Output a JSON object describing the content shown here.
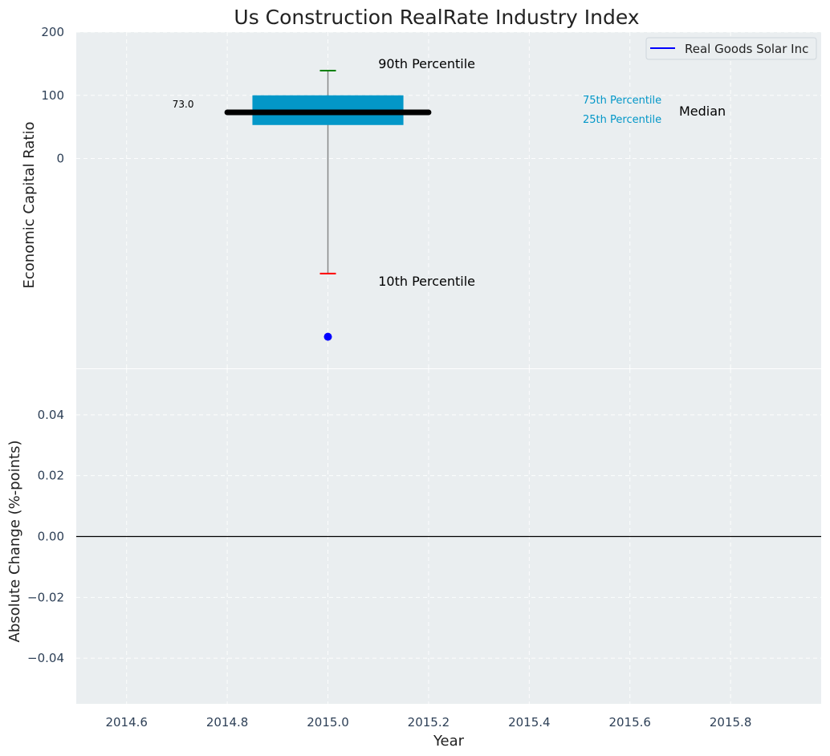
{
  "chart_data": {
    "type": "box",
    "title": "Us Construction RealRate Industry Index",
    "xlabel": "Year",
    "xlim": [
      2014.5,
      2015.98
    ],
    "x_ticks": [
      "2014.6",
      "2014.8",
      "2015.0",
      "2015.2",
      "2015.4",
      "2015.6",
      "2015.8"
    ],
    "x_tick_values": [
      2014.6,
      2014.8,
      2015.0,
      2015.2,
      2015.4,
      2015.6,
      2015.8
    ],
    "grid": true,
    "legend": {
      "position": "top-right",
      "entries": [
        {
          "name": "Real Goods Solar Inc",
          "color": "#0000ff",
          "marker": "line"
        }
      ]
    },
    "panels": [
      {
        "ylabel": "Economic Capital Ratio",
        "ylim": [
          -332,
          200
        ],
        "y_ticks": [
          "200",
          "100",
          "0"
        ],
        "y_tick_values": [
          200,
          100,
          0
        ],
        "box": {
          "x": 2015.0,
          "x_from": 2014.85,
          "x_to": 2015.15,
          "p25": 53,
          "p75": 100,
          "median": 73,
          "median_x_from": 2014.8,
          "median_x_to": 2015.2,
          "p10": -182,
          "p90": 139,
          "median_label": "73.0",
          "box_color": "#0397c8",
          "p90_color": "#008000",
          "p10_color": "#ff0000"
        },
        "points": [
          {
            "series": "Real Goods Solar Inc",
            "x": 2015.0,
            "y": -282,
            "color": "#0000ff"
          }
        ],
        "annotations": {
          "p90": "90th Percentile",
          "p10": "10th Percentile",
          "p75": "75th Percentile",
          "p25": "25th Percentile",
          "median": "Median"
        }
      },
      {
        "ylabel": "Absolute Change (%-points)",
        "ylim": [
          -0.055,
          0.055
        ],
        "y_ticks": [
          "0.04",
          "0.02",
          "0.00",
          "−0.02",
          "−0.04"
        ],
        "y_tick_values": [
          0.04,
          0.02,
          0.0,
          -0.02,
          -0.04
        ],
        "zero_line": true
      }
    ],
    "colors": {
      "background": "#eaeef0",
      "median": "#000000",
      "whisker": "#888888"
    }
  }
}
